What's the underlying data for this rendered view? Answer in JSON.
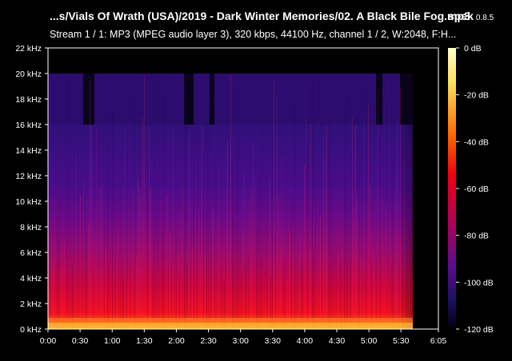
{
  "header": {
    "title": "...s/Vials Of Wrath (USA)/2019 - Dark Winter Memories/02. A Black Bile Fog.mp3",
    "app_name": "spek",
    "app_version": "0.8.5",
    "stream_info": "Stream 1 / 1: MP3 (MPEG audio layer 3), 320 kbps, 44100 Hz, channel 1 / 2, W:2048, F:H..."
  },
  "spectrogram": {
    "freq_ticks": [
      "22 kHz",
      "20 kHz",
      "18 kHz",
      "16 kHz",
      "14 kHz",
      "12 kHz",
      "10 kHz",
      "8 kHz",
      "6 kHz",
      "4 kHz",
      "2 kHz",
      "0 kHz"
    ],
    "time_ticks": [
      "0:00",
      "0:30",
      "1:00",
      "1:30",
      "2:00",
      "2:30",
      "3:00",
      "3:30",
      "4:00",
      "4:30",
      "5:00",
      "5:30",
      "6:05"
    ],
    "db_ticks": [
      "0 dB",
      "-20 dB",
      "-40 dB",
      "-60 dB",
      "-80 dB",
      "-100 dB",
      "-120 dB"
    ],
    "colors": {
      "background": "#000000",
      "loud": "#ffff80",
      "mid": "#ff2000",
      "low": "#a0006a",
      "quiet": "#2a0a7a",
      "silent": "#000010"
    }
  }
}
